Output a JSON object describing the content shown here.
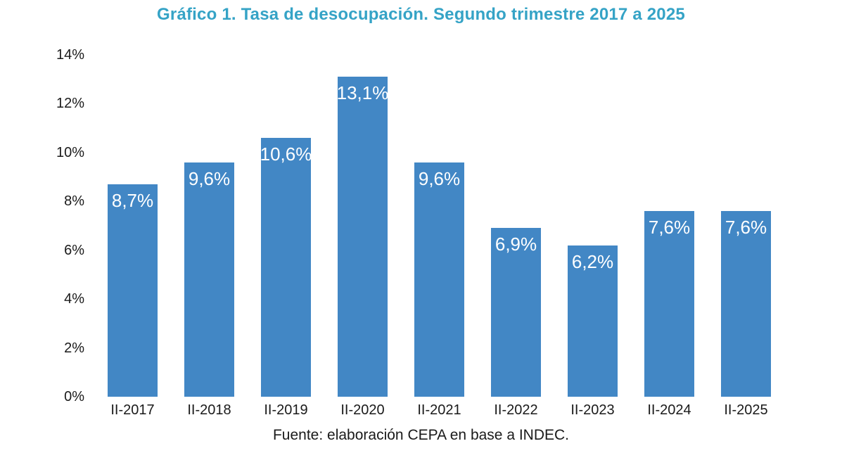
{
  "page": {
    "title": "Gráfico 1. Tasa de desocupación. Segundo trimestre 2017 a 2025",
    "source": "Fuente: elaboración CEPA en base a INDEC."
  },
  "colors": {
    "background": "#ffffff",
    "bar": "#4287c5",
    "title": "#35a3c6",
    "text": "#1a1a1a",
    "bar_label": "#ffffff"
  },
  "chart_data": {
    "type": "bar",
    "title": "Gráfico 1. Tasa de desocupación. Segundo trimestre 2017 a 2025",
    "categories": [
      "II-2017",
      "II-2018",
      "II-2019",
      "II-2020",
      "II-2021",
      "II-2022",
      "II-2023",
      "II-2024",
      "II-2025"
    ],
    "values": [
      8.7,
      9.6,
      10.6,
      13.1,
      9.6,
      6.9,
      6.2,
      7.6,
      7.6
    ],
    "value_labels": [
      "8,7%",
      "9,6%",
      "10,6%",
      "13,1%",
      "9,6%",
      "6,9%",
      "6,2%",
      "7,6%",
      "7,6%"
    ],
    "xlabel": "",
    "ylabel": "",
    "ylim": [
      0,
      14
    ],
    "ytick_values": [
      0,
      2,
      4,
      6,
      8,
      10,
      12,
      14
    ],
    "ytick_labels": [
      "0%",
      "2%",
      "4%",
      "6%",
      "8%",
      "10%",
      "12%",
      "14%"
    ],
    "grid": false,
    "legend": "none",
    "source": "Fuente: elaboración CEPA en base a INDEC."
  }
}
